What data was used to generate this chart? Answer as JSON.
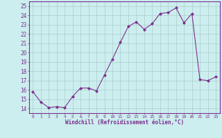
{
  "x": [
    0,
    1,
    2,
    3,
    4,
    5,
    6,
    7,
    8,
    9,
    10,
    11,
    12,
    13,
    14,
    15,
    16,
    17,
    18,
    19,
    20,
    21,
    22,
    23
  ],
  "y": [
    15.8,
    14.7,
    14.1,
    14.2,
    14.1,
    15.3,
    16.2,
    16.2,
    15.9,
    17.6,
    19.3,
    21.1,
    22.8,
    23.3,
    22.5,
    23.1,
    24.2,
    24.3,
    24.8,
    23.2,
    24.2,
    17.1,
    17.0,
    17.4
  ],
  "line_color": "#7b2f8f",
  "marker": "D",
  "marker_size": 2.0,
  "bg_color": "#cceeee",
  "grid_color": "#aacccc",
  "xlabel": "Windchill (Refroidissement éolien,°C)",
  "xlabel_color": "#7b2f8f",
  "tick_color": "#7b2f8f",
  "spine_color": "#7b2f8f",
  "ylim": [
    13.5,
    25.5
  ],
  "yticks": [
    14,
    15,
    16,
    17,
    18,
    19,
    20,
    21,
    22,
    23,
    24,
    25
  ],
  "xlim": [
    -0.5,
    23.5
  ],
  "xticks": [
    0,
    1,
    2,
    3,
    4,
    5,
    6,
    7,
    8,
    9,
    10,
    11,
    12,
    13,
    14,
    15,
    16,
    17,
    18,
    19,
    20,
    21,
    22,
    23
  ],
  "ytick_fontsize": 5.5,
  "xtick_fontsize": 4.5,
  "xlabel_fontsize": 5.5
}
